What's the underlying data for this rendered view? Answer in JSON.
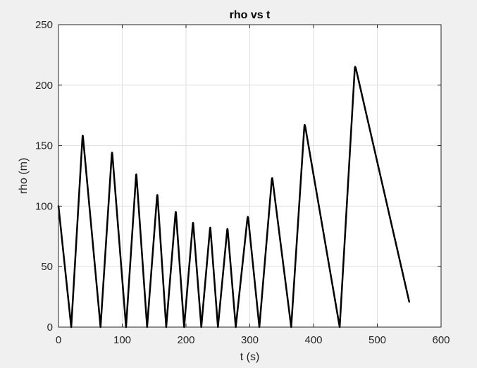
{
  "chart_data": {
    "type": "line",
    "title": "rho vs t",
    "xlabel": "t (s)",
    "ylabel": "rho (m)",
    "xlim": [
      0,
      600
    ],
    "ylim": [
      0,
      250
    ],
    "xticks": [
      "0",
      "100",
      "200",
      "300",
      "400",
      "500",
      "600"
    ],
    "yticks": [
      "0",
      "50",
      "100",
      "150",
      "200",
      "250"
    ],
    "grid": true,
    "legend": "none",
    "series": [
      {
        "color": "#000000",
        "x": [
          0,
          20,
          38,
          66,
          84,
          106,
          122,
          139,
          155,
          169,
          184,
          197,
          211,
          224,
          238,
          250,
          265,
          278,
          297,
          315,
          335,
          365,
          386,
          441,
          465,
          550
        ],
        "y": [
          100,
          0,
          160,
          0,
          146,
          0,
          128,
          0,
          111,
          0,
          97,
          0,
          88,
          0,
          84,
          0,
          83,
          0,
          93,
          0,
          125,
          0,
          169,
          0,
          217,
          21
        ]
      }
    ]
  },
  "style": {
    "figure_bg": "#f0f0f0",
    "axes_bg": "#ffffff",
    "grid_color": "#dfdfdf",
    "axis_color": "#262626",
    "line_color": "#000000"
  }
}
